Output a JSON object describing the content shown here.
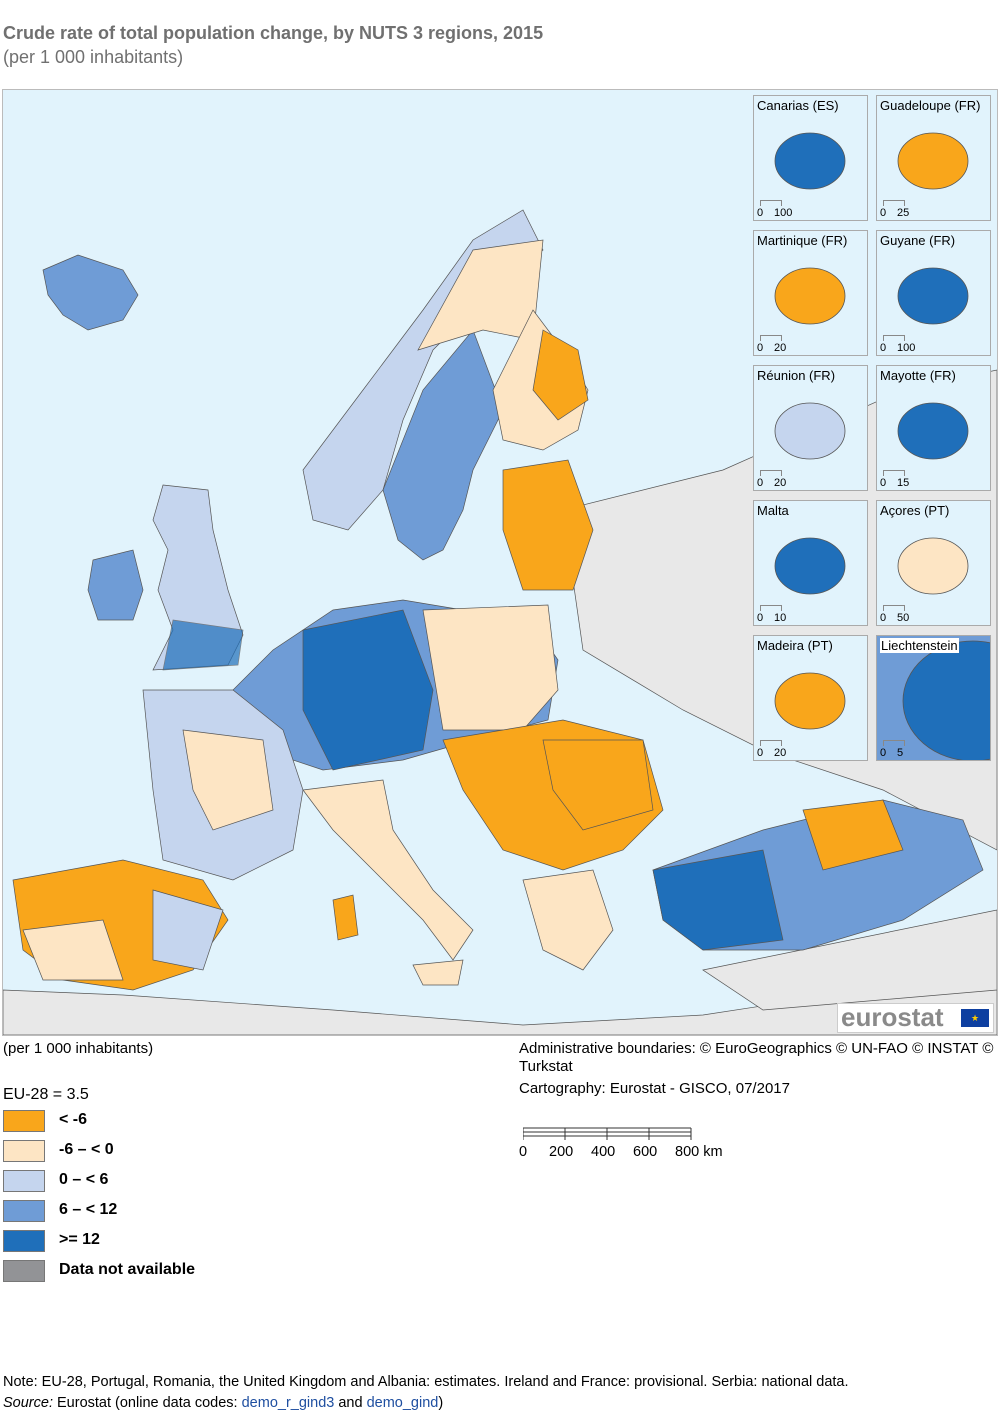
{
  "title": "Crude rate of total population change, by NUTS 3 regions, 2015",
  "subtitle": "(per 1 000 inhabitants)",
  "insets": [
    {
      "label": "Canarias (ES)",
      "scale": [
        "0",
        "100"
      ],
      "color": "#1f6fba"
    },
    {
      "label": "Guadeloupe (FR)",
      "scale": [
        "0",
        "25"
      ],
      "color": "#f9a61b"
    },
    {
      "label": "Martinique (FR)",
      "scale": [
        "0",
        "20"
      ],
      "color": "#f9a61b"
    },
    {
      "label": "Guyane (FR)",
      "scale": [
        "0",
        "100"
      ],
      "color": "#1f6fba"
    },
    {
      "label": "Réunion (FR)",
      "scale": [
        "0",
        "20"
      ],
      "color": "#c5d5ee"
    },
    {
      "label": "Mayotte (FR)",
      "scale": [
        "0",
        "15"
      ],
      "color": "#1f6fba"
    },
    {
      "label": "Malta",
      "scale": [
        "0",
        "10"
      ],
      "color": "#1f6fba"
    },
    {
      "label": "Açores (PT)",
      "scale": [
        "0",
        "50"
      ],
      "color": "#fde5c4"
    },
    {
      "label": "Madeira (PT)",
      "scale": [
        "0",
        "20"
      ],
      "color": "#f9a61b"
    },
    {
      "label": "Liechtenstein",
      "scale": [
        "0",
        "5"
      ],
      "color": "#6f9cd6"
    }
  ],
  "logo": "eurostat",
  "legend": {
    "unit": "(per 1 000 inhabitants)",
    "eu_value": "EU-28 = 3.5",
    "classes": [
      {
        "label": "< -6",
        "color": "#f9a61b"
      },
      {
        "label": "-6 – < 0",
        "color": "#fde5c4"
      },
      {
        "label": "0 – < 6",
        "color": "#c5d5ee"
      },
      {
        "label": "6 – < 12",
        "color": "#6f9cd6"
      },
      {
        "label": ">= 12",
        "color": "#1f6fba"
      },
      {
        "label": "Data not available",
        "color": "#929396"
      }
    ]
  },
  "credits": {
    "boundaries": "Administrative boundaries: © EuroGeographics © UN-FAO © INSTAT © Turkstat",
    "cartography": "Cartography: Eurostat - GISCO, 07/2017",
    "scale_ticks": [
      "0",
      "200",
      "400",
      "600",
      "800 km"
    ]
  },
  "note": "Note: EU-28, Portugal, Romania, the United Kingdom and Albania: estimates. Ireland and France: provisional. Serbia: national data.",
  "source": {
    "prefix": "Source:",
    "text": " Eurostat (online data codes: ",
    "link1": "demo_r_gind3",
    "and": " and ",
    "link2": "demo_gind",
    "suffix": ")"
  },
  "colors": {
    "sea": "#e1f3fc",
    "non_eu": "#e8e8e8"
  }
}
